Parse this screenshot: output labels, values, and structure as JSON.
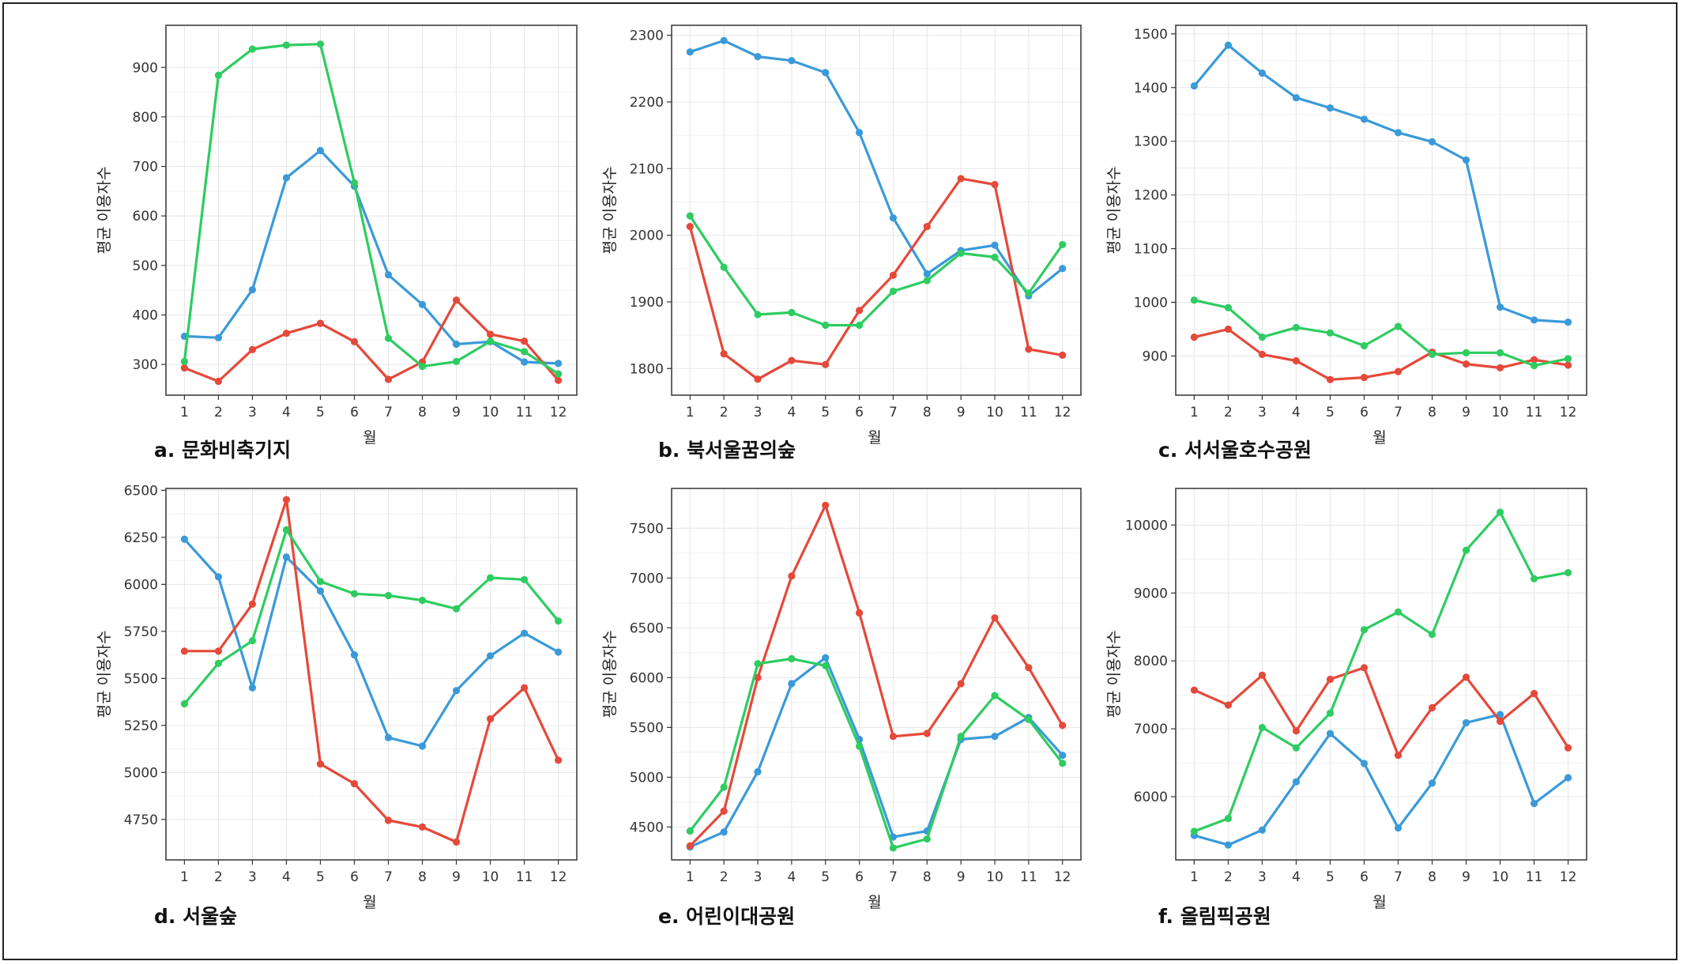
{
  "colors": {
    "blue": "#3a9ad9",
    "red": "#e5493a",
    "green": "#2ecc61",
    "grid": "#e6e6e6",
    "axis": "#333333"
  },
  "chart_data": [
    {
      "type": "line",
      "caption": "a. 문화비축기지",
      "xlabel": "월",
      "ylabel": "평균 이용자수",
      "categories": [
        "1",
        "2",
        "3",
        "4",
        "5",
        "6",
        "7",
        "8",
        "9",
        "10",
        "11",
        "12"
      ],
      "yticks": [
        300,
        400,
        500,
        600,
        700,
        800,
        900
      ],
      "ylim": [
        238,
        985
      ],
      "series": [
        {
          "color": "blue",
          "values": [
            357,
            354,
            451,
            677,
            732,
            660,
            481,
            421,
            341,
            346,
            305,
            302
          ]
        },
        {
          "color": "red",
          "values": [
            293,
            266,
            330,
            363,
            383,
            346,
            270,
            305,
            430,
            361,
            347,
            268
          ]
        },
        {
          "color": "green",
          "values": [
            306,
            884,
            937,
            945,
            947,
            667,
            353,
            296,
            306,
            347,
            326,
            281
          ]
        }
      ]
    },
    {
      "type": "line",
      "caption": "b. 북서울꿈의숲",
      "xlabel": "월",
      "ylabel": "평균 이용자수",
      "categories": [
        "1",
        "2",
        "3",
        "4",
        "5",
        "6",
        "7",
        "8",
        "9",
        "10",
        "11",
        "12"
      ],
      "yticks": [
        1800,
        1900,
        2000,
        2100,
        2200,
        2300
      ],
      "ylim": [
        1760,
        2315
      ],
      "series": [
        {
          "color": "blue",
          "values": [
            2275,
            2292,
            2268,
            2262,
            2244,
            2154,
            2026,
            1942,
            1977,
            1985,
            1909,
            1950
          ]
        },
        {
          "color": "red",
          "values": [
            2013,
            1822,
            1784,
            1812,
            1806,
            1887,
            1940,
            2013,
            2085,
            2076,
            1829,
            1820
          ]
        },
        {
          "color": "green",
          "values": [
            2029,
            1952,
            1881,
            1884,
            1865,
            1865,
            1916,
            1932,
            1973,
            1967,
            1913,
            1986
          ]
        }
      ]
    },
    {
      "type": "line",
      "caption": "c. 서서울호수공원",
      "xlabel": "월",
      "ylabel": "평균 이용자수",
      "categories": [
        "1",
        "2",
        "3",
        "4",
        "5",
        "6",
        "7",
        "8",
        "9",
        "10",
        "11",
        "12"
      ],
      "yticks": [
        900,
        1000,
        1100,
        1200,
        1300,
        1400,
        1500
      ],
      "ylim": [
        827,
        1516
      ],
      "series": [
        {
          "color": "blue",
          "values": [
            1403,
            1479,
            1427,
            1381,
            1362,
            1341,
            1316,
            1299,
            1265,
            991,
            967,
            963
          ]
        },
        {
          "color": "red",
          "values": [
            935,
            950,
            903,
            891,
            856,
            860,
            871,
            907,
            885,
            878,
            893,
            883
          ]
        },
        {
          "color": "green",
          "values": [
            1004,
            990,
            935,
            953,
            943,
            919,
            955,
            903,
            906,
            906,
            882,
            895
          ]
        }
      ]
    },
    {
      "type": "line",
      "caption": "d. 서울숲",
      "xlabel": "월",
      "ylabel": "평균 이용자수",
      "categories": [
        "1",
        "2",
        "3",
        "4",
        "5",
        "6",
        "7",
        "8",
        "9",
        "10",
        "11",
        "12"
      ],
      "yticks": [
        4750,
        5000,
        5250,
        5500,
        5750,
        6000,
        6250,
        6500
      ],
      "ylim": [
        4535,
        6510
      ],
      "series": [
        {
          "color": "blue",
          "values": [
            6240,
            6040,
            5450,
            6145,
            5965,
            5625,
            5185,
            5140,
            5435,
            5620,
            5740,
            5640
          ]
        },
        {
          "color": "red",
          "values": [
            5645,
            5645,
            5895,
            6450,
            5045,
            4940,
            4745,
            4710,
            4630,
            5285,
            5450,
            5065
          ]
        },
        {
          "color": "green",
          "values": [
            5365,
            5580,
            5700,
            6290,
            6015,
            5950,
            5940,
            5915,
            5870,
            6035,
            6025,
            5805
          ]
        }
      ]
    },
    {
      "type": "line",
      "caption": "e. 어린이대공원",
      "xlabel": "월",
      "ylabel": "평균 이용자수",
      "categories": [
        "1",
        "2",
        "3",
        "4",
        "5",
        "6",
        "7",
        "8",
        "9",
        "10",
        "11",
        "12"
      ],
      "yticks": [
        4500,
        5000,
        5500,
        6000,
        6500,
        7000,
        7500
      ],
      "ylim": [
        4170,
        7900
      ],
      "series": [
        {
          "color": "blue",
          "values": [
            4300,
            4450,
            5055,
            5940,
            6200,
            5380,
            4400,
            4460,
            5380,
            5410,
            5600,
            5220
          ]
        },
        {
          "color": "red",
          "values": [
            4310,
            4660,
            6000,
            7020,
            7730,
            6650,
            5410,
            5440,
            5940,
            6600,
            6100,
            5520
          ]
        },
        {
          "color": "green",
          "values": [
            4460,
            4900,
            6140,
            6190,
            6120,
            5310,
            4290,
            4380,
            5410,
            5820,
            5580,
            5140
          ]
        }
      ]
    },
    {
      "type": "line",
      "caption": "f. 올림픽공원",
      "xlabel": "월",
      "ylabel": "평균 이용자수",
      "categories": [
        "1",
        "2",
        "3",
        "4",
        "5",
        "6",
        "7",
        "8",
        "9",
        "10",
        "11",
        "12"
      ],
      "yticks": [
        6000,
        7000,
        8000,
        9000,
        10000
      ],
      "ylim": [
        5070,
        10540
      ],
      "series": [
        {
          "color": "blue",
          "values": [
            5430,
            5290,
            5510,
            6220,
            6930,
            6490,
            5540,
            6200,
            7090,
            7210,
            5900,
            6280
          ]
        },
        {
          "color": "red",
          "values": [
            7570,
            7350,
            7790,
            6970,
            7730,
            7900,
            6610,
            7310,
            7760,
            7110,
            7520,
            6720
          ]
        },
        {
          "color": "green",
          "values": [
            5490,
            5680,
            7020,
            6720,
            7230,
            8460,
            8720,
            8390,
            9630,
            10190,
            9210,
            9300
          ]
        }
      ]
    }
  ]
}
